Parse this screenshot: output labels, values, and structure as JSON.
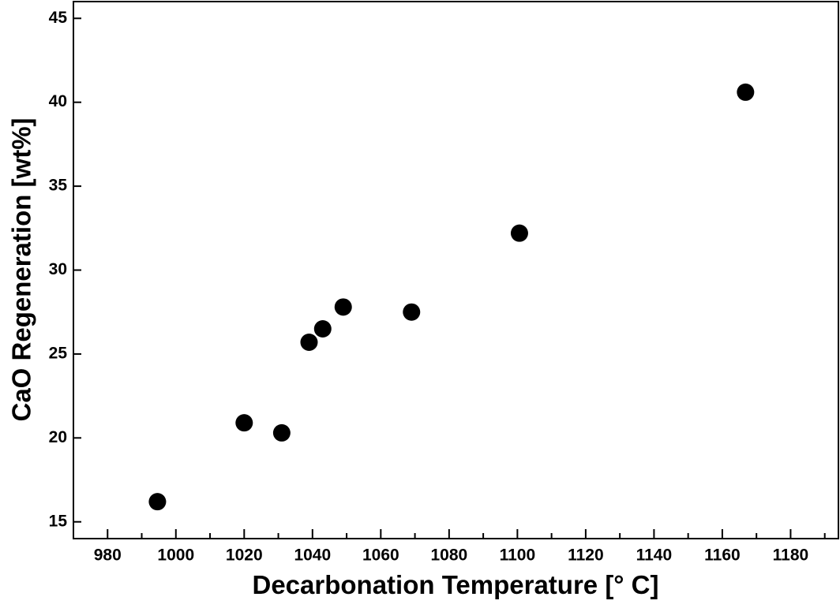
{
  "chart_data": {
    "type": "scatter",
    "x_label": "Decarbonation Temperature [° C]",
    "y_label": "CaO Regeneration [wt%]",
    "x": [
      994.6,
      1020,
      1031,
      1039,
      1043,
      1049,
      1069,
      1100.6,
      1166.8
    ],
    "values": [
      16.2,
      20.9,
      20.3,
      25.7,
      26.5,
      27.8,
      27.5,
      32.2,
      40.6
    ],
    "color": "#000000",
    "xlim": [
      970,
      1194
    ],
    "xticks": [
      980,
      1000,
      1020,
      1040,
      1060,
      1080,
      1100,
      1120,
      1140,
      1160,
      1180
    ],
    "x_minor_ticks": [
      990,
      1010,
      1030,
      1050,
      1070,
      1090,
      1110,
      1130,
      1150,
      1170,
      1190
    ],
    "ylim": [
      14,
      46
    ],
    "yticks": [
      15,
      20,
      25,
      30,
      35,
      40,
      45
    ],
    "grid": false
  }
}
